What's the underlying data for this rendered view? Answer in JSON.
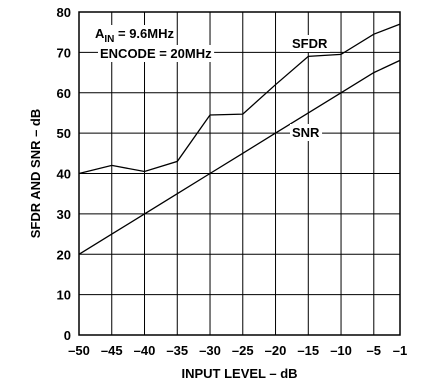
{
  "chart_data": {
    "type": "line",
    "title": "",
    "xlabel": "INPUT LEVEL – dB",
    "ylabel": "SFDR AND SNR – dB",
    "xlim": [
      -50,
      -1
    ],
    "ylim": [
      0,
      80
    ],
    "xticks": [
      -50,
      -45,
      -40,
      -35,
      -30,
      -25,
      -20,
      -15,
      -10,
      -5,
      -1
    ],
    "xtick_labels": [
      "–50",
      "–45",
      "–40",
      "–35",
      "–30",
      "–25",
      "–20",
      "–15",
      "–10",
      "–5",
      "–1"
    ],
    "yticks": [
      0,
      10,
      20,
      30,
      40,
      50,
      60,
      70,
      80
    ],
    "ytick_labels": [
      "0",
      "10",
      "20",
      "30",
      "40",
      "50",
      "60",
      "70",
      "80"
    ],
    "grid": true,
    "annotations": {
      "ain_prefix": "A",
      "ain_sub": "IN",
      "ain_value": " = 9.6MHz",
      "encode": "ENCODE = 20MHz"
    },
    "series": [
      {
        "name": "SFDR",
        "x": [
          -50,
          -45,
          -40,
          -35,
          -30,
          -25,
          -20,
          -15,
          -10,
          -5,
          -1
        ],
        "y": [
          40,
          42,
          40.5,
          43,
          54.5,
          54.7,
          62,
          69,
          69.5,
          74.5,
          77
        ]
      },
      {
        "name": "SNR",
        "x": [
          -50,
          -45,
          -40,
          -35,
          -30,
          -25,
          -20,
          -15,
          -10,
          -5,
          -1
        ],
        "y": [
          20,
          25,
          30,
          35,
          40,
          45,
          50,
          55,
          60,
          65,
          68
        ]
      }
    ]
  }
}
